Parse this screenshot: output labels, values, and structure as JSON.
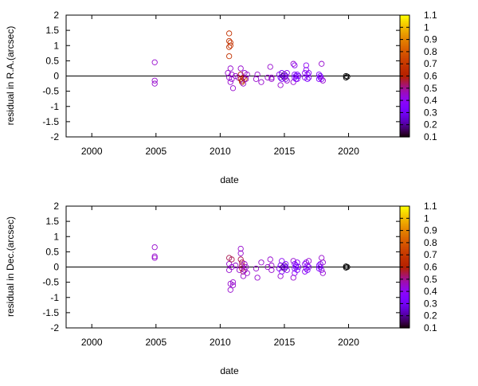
{
  "chart_data": [
    {
      "type": "scatter",
      "xlabel": "date",
      "ylabel": "residual in R.A.(arcsec)",
      "xlim": [
        1998,
        2024
      ],
      "ylim": [
        -2,
        2
      ],
      "xticks": [
        2000,
        2005,
        2010,
        2015,
        2020
      ],
      "yticks": [
        -2,
        -1.5,
        -1,
        -0.5,
        0,
        0.5,
        1,
        1.5,
        2
      ],
      "ytick_labels": [
        "-2",
        "-1.5",
        "-1",
        "-0.5",
        "0",
        "0.5",
        "1",
        "1.5",
        "2"
      ],
      "zero_line": true,
      "grid": false,
      "marker": "open-circle",
      "colorbar": {
        "range": [
          0.1,
          1.1
        ],
        "ticks": [
          0.1,
          0.2,
          0.3,
          0.4,
          0.5,
          0.6,
          0.7,
          0.8,
          0.9,
          1,
          1.1
        ],
        "tick_labels": [
          "0.1",
          "0.2",
          "0.3",
          "0.4",
          "0.5",
          "0.6",
          "0.7",
          "0.8",
          "0.9",
          "1",
          "1.1"
        ],
        "palette": "gnuplot-rgbformulae-7-5-15"
      },
      "points": [
        {
          "x": 2004.9,
          "y": 0.45,
          "c": 0.45
        },
        {
          "x": 2004.9,
          "y": -0.15,
          "c": 0.45
        },
        {
          "x": 2004.9,
          "y": -0.25,
          "c": 0.45
        },
        {
          "x": 2010.7,
          "y": 1.4,
          "c": 0.68
        },
        {
          "x": 2010.7,
          "y": 1.15,
          "c": 0.68
        },
        {
          "x": 2010.8,
          "y": 1.1,
          "c": 0.68
        },
        {
          "x": 2010.8,
          "y": 1.0,
          "c": 0.68
        },
        {
          "x": 2010.7,
          "y": 0.95,
          "c": 0.68
        },
        {
          "x": 2010.7,
          "y": 0.65,
          "c": 0.68
        },
        {
          "x": 2010.6,
          "y": 0.1,
          "c": 0.45
        },
        {
          "x": 2010.7,
          "y": -0.05,
          "c": 0.45
        },
        {
          "x": 2010.8,
          "y": 0.25,
          "c": 0.45
        },
        {
          "x": 2010.9,
          "y": 0.05,
          "c": 0.45
        },
        {
          "x": 2010.9,
          "y": -0.1,
          "c": 0.45
        },
        {
          "x": 2011.0,
          "y": -0.4,
          "c": 0.45
        },
        {
          "x": 2010.8,
          "y": -0.2,
          "c": 0.45
        },
        {
          "x": 2011.2,
          "y": 0.0,
          "c": 0.45
        },
        {
          "x": 2011.4,
          "y": -0.05,
          "c": 0.45
        },
        {
          "x": 2011.6,
          "y": 0.25,
          "c": 0.45
        },
        {
          "x": 2011.6,
          "y": 0.05,
          "c": 0.6
        },
        {
          "x": 2011.6,
          "y": -0.1,
          "c": 0.6
        },
        {
          "x": 2011.7,
          "y": -0.15,
          "c": 0.6
        },
        {
          "x": 2011.7,
          "y": -0.2,
          "c": 0.6
        },
        {
          "x": 2011.8,
          "y": -0.05,
          "c": 0.6
        },
        {
          "x": 2011.8,
          "y": -0.25,
          "c": 0.45
        },
        {
          "x": 2011.9,
          "y": 0.1,
          "c": 0.45
        },
        {
          "x": 2011.9,
          "y": -0.1,
          "c": 0.6
        },
        {
          "x": 2012.0,
          "y": -0.1,
          "c": 0.45
        },
        {
          "x": 2012.1,
          "y": 0.05,
          "c": 0.45
        },
        {
          "x": 2012.8,
          "y": -0.1,
          "c": 0.45
        },
        {
          "x": 2012.9,
          "y": 0.05,
          "c": 0.45
        },
        {
          "x": 2013.2,
          "y": -0.2,
          "c": 0.45
        },
        {
          "x": 2013.7,
          "y": -0.05,
          "c": 0.45
        },
        {
          "x": 2013.9,
          "y": 0.3,
          "c": 0.45
        },
        {
          "x": 2014.0,
          "y": -0.1,
          "c": 0.45
        },
        {
          "x": 2014.0,
          "y": -0.05,
          "c": 0.45
        },
        {
          "x": 2014.6,
          "y": 0.05,
          "c": 0.4
        },
        {
          "x": 2014.7,
          "y": -0.3,
          "c": 0.45
        },
        {
          "x": 2014.7,
          "y": -0.05,
          "c": 0.3
        },
        {
          "x": 2014.8,
          "y": 0.1,
          "c": 0.3
        },
        {
          "x": 2014.8,
          "y": -0.1,
          "c": 0.3
        },
        {
          "x": 2014.9,
          "y": 0.0,
          "c": 0.2
        },
        {
          "x": 2015.0,
          "y": 0.05,
          "c": 0.2
        },
        {
          "x": 2015.0,
          "y": -0.05,
          "c": 0.2
        },
        {
          "x": 2015.1,
          "y": 0.0,
          "c": 0.3
        },
        {
          "x": 2015.1,
          "y": -0.1,
          "c": 0.35
        },
        {
          "x": 2015.2,
          "y": 0.1,
          "c": 0.4
        },
        {
          "x": 2015.2,
          "y": -0.15,
          "c": 0.45
        },
        {
          "x": 2015.7,
          "y": 0.4,
          "c": 0.45
        },
        {
          "x": 2015.7,
          "y": -0.2,
          "c": 0.45
        },
        {
          "x": 2015.8,
          "y": 0.35,
          "c": 0.4
        },
        {
          "x": 2015.8,
          "y": 0.05,
          "c": 0.35
        },
        {
          "x": 2015.8,
          "y": -0.05,
          "c": 0.35
        },
        {
          "x": 2015.9,
          "y": 0.0,
          "c": 0.3
        },
        {
          "x": 2015.9,
          "y": -0.1,
          "c": 0.35
        },
        {
          "x": 2016.0,
          "y": 0.05,
          "c": 0.35
        },
        {
          "x": 2016.0,
          "y": -0.1,
          "c": 0.4
        },
        {
          "x": 2016.1,
          "y": 0.0,
          "c": 0.35
        },
        {
          "x": 2016.6,
          "y": 0.1,
          "c": 0.4
        },
        {
          "x": 2016.6,
          "y": -0.05,
          "c": 0.4
        },
        {
          "x": 2016.7,
          "y": 0.35,
          "c": 0.4
        },
        {
          "x": 2016.7,
          "y": 0.2,
          "c": 0.4
        },
        {
          "x": 2016.8,
          "y": 0.05,
          "c": 0.35
        },
        {
          "x": 2016.8,
          "y": -0.1,
          "c": 0.35
        },
        {
          "x": 2016.9,
          "y": -0.05,
          "c": 0.4
        },
        {
          "x": 2016.9,
          "y": 0.1,
          "c": 0.4
        },
        {
          "x": 2017.7,
          "y": 0.05,
          "c": 0.35
        },
        {
          "x": 2017.7,
          "y": -0.1,
          "c": 0.35
        },
        {
          "x": 2017.8,
          "y": 0.0,
          "c": 0.3
        },
        {
          "x": 2017.8,
          "y": -0.05,
          "c": 0.35
        },
        {
          "x": 2017.9,
          "y": 0.4,
          "c": 0.45
        },
        {
          "x": 2017.9,
          "y": -0.1,
          "c": 0.4
        },
        {
          "x": 2018.0,
          "y": -0.15,
          "c": 0.45
        },
        {
          "x": 2019.8,
          "y": 0.0,
          "c": 0.1
        },
        {
          "x": 2019.8,
          "y": -0.05,
          "c": 0.1
        },
        {
          "x": 2019.9,
          "y": -0.02,
          "c": 0.1
        }
      ]
    },
    {
      "type": "scatter",
      "xlabel": "date",
      "ylabel": "residual in Dec.(arcsec)",
      "xlim": [
        1998,
        2024
      ],
      "ylim": [
        -2,
        2
      ],
      "xticks": [
        2000,
        2005,
        2010,
        2015,
        2020
      ],
      "yticks": [
        -2,
        -1.5,
        -1,
        -0.5,
        0,
        0.5,
        1,
        1.5,
        2
      ],
      "ytick_labels": [
        "-2",
        "-1.5",
        "-1",
        "-0.5",
        "0",
        "0.5",
        "1",
        "1.5",
        "2"
      ],
      "zero_line": true,
      "grid": false,
      "marker": "open-circle",
      "colorbar": {
        "range": [
          0.1,
          1.1
        ],
        "ticks": [
          0.1,
          0.2,
          0.3,
          0.4,
          0.5,
          0.6,
          0.7,
          0.8,
          0.9,
          1,
          1.1
        ],
        "tick_labels": [
          "0.1",
          "0.2",
          "0.3",
          "0.4",
          "0.5",
          "0.6",
          "0.7",
          "0.8",
          "0.9",
          "1",
          "1.1"
        ],
        "palette": "gnuplot-rgbformulae-7-5-15"
      },
      "points": [
        {
          "x": 2004.9,
          "y": 0.65,
          "c": 0.45
        },
        {
          "x": 2004.9,
          "y": 0.35,
          "c": 0.45
        },
        {
          "x": 2004.9,
          "y": 0.3,
          "c": 0.45
        },
        {
          "x": 2010.7,
          "y": 0.3,
          "c": 0.55
        },
        {
          "x": 2010.7,
          "y": 0.1,
          "c": 0.45
        },
        {
          "x": 2010.7,
          "y": -0.1,
          "c": 0.45
        },
        {
          "x": 2010.8,
          "y": -0.55,
          "c": 0.45
        },
        {
          "x": 2010.8,
          "y": -0.75,
          "c": 0.45
        },
        {
          "x": 2010.9,
          "y": 0.25,
          "c": 0.55
        },
        {
          "x": 2010.9,
          "y": 0.0,
          "c": 0.45
        },
        {
          "x": 2011.0,
          "y": -0.6,
          "c": 0.45
        },
        {
          "x": 2011.0,
          "y": -0.5,
          "c": 0.45
        },
        {
          "x": 2011.2,
          "y": 0.05,
          "c": 0.45
        },
        {
          "x": 2011.5,
          "y": -0.1,
          "c": 0.45
        },
        {
          "x": 2011.6,
          "y": 0.6,
          "c": 0.45
        },
        {
          "x": 2011.6,
          "y": 0.45,
          "c": 0.45
        },
        {
          "x": 2011.6,
          "y": 0.25,
          "c": 0.55
        },
        {
          "x": 2011.7,
          "y": 0.15,
          "c": 0.55
        },
        {
          "x": 2011.7,
          "y": 0.05,
          "c": 0.55
        },
        {
          "x": 2011.7,
          "y": -0.05,
          "c": 0.55
        },
        {
          "x": 2011.8,
          "y": -0.15,
          "c": 0.55
        },
        {
          "x": 2011.8,
          "y": -0.3,
          "c": 0.45
        },
        {
          "x": 2011.9,
          "y": 0.1,
          "c": 0.45
        },
        {
          "x": 2011.9,
          "y": -0.1,
          "c": 0.45
        },
        {
          "x": 2012.0,
          "y": 0.0,
          "c": 0.45
        },
        {
          "x": 2012.1,
          "y": -0.2,
          "c": 0.45
        },
        {
          "x": 2012.8,
          "y": -0.05,
          "c": 0.45
        },
        {
          "x": 2012.9,
          "y": -0.35,
          "c": 0.45
        },
        {
          "x": 2013.2,
          "y": 0.15,
          "c": 0.45
        },
        {
          "x": 2013.7,
          "y": 0.0,
          "c": 0.45
        },
        {
          "x": 2013.9,
          "y": 0.25,
          "c": 0.45
        },
        {
          "x": 2014.0,
          "y": -0.1,
          "c": 0.45
        },
        {
          "x": 2014.0,
          "y": 0.05,
          "c": 0.45
        },
        {
          "x": 2014.6,
          "y": -0.05,
          "c": 0.4
        },
        {
          "x": 2014.7,
          "y": -0.3,
          "c": 0.45
        },
        {
          "x": 2014.7,
          "y": 0.05,
          "c": 0.3
        },
        {
          "x": 2014.8,
          "y": 0.2,
          "c": 0.4
        },
        {
          "x": 2014.8,
          "y": -0.15,
          "c": 0.35
        },
        {
          "x": 2014.9,
          "y": 0.0,
          "c": 0.2
        },
        {
          "x": 2015.0,
          "y": 0.05,
          "c": 0.2
        },
        {
          "x": 2015.0,
          "y": -0.05,
          "c": 0.2
        },
        {
          "x": 2015.1,
          "y": 0.0,
          "c": 0.3
        },
        {
          "x": 2015.1,
          "y": 0.1,
          "c": 0.35
        },
        {
          "x": 2015.2,
          "y": -0.1,
          "c": 0.4
        },
        {
          "x": 2015.7,
          "y": 0.2,
          "c": 0.45
        },
        {
          "x": 2015.7,
          "y": -0.35,
          "c": 0.45
        },
        {
          "x": 2015.8,
          "y": -0.2,
          "c": 0.4
        },
        {
          "x": 2015.8,
          "y": 0.1,
          "c": 0.35
        },
        {
          "x": 2015.8,
          "y": -0.05,
          "c": 0.35
        },
        {
          "x": 2015.9,
          "y": 0.0,
          "c": 0.3
        },
        {
          "x": 2015.9,
          "y": 0.05,
          "c": 0.35
        },
        {
          "x": 2016.0,
          "y": -0.1,
          "c": 0.35
        },
        {
          "x": 2016.0,
          "y": 0.15,
          "c": 0.4
        },
        {
          "x": 2016.1,
          "y": 0.0,
          "c": 0.35
        },
        {
          "x": 2016.6,
          "y": 0.1,
          "c": 0.4
        },
        {
          "x": 2016.6,
          "y": -0.15,
          "c": 0.4
        },
        {
          "x": 2016.7,
          "y": 0.15,
          "c": 0.4
        },
        {
          "x": 2016.7,
          "y": -0.05,
          "c": 0.4
        },
        {
          "x": 2016.8,
          "y": 0.05,
          "c": 0.35
        },
        {
          "x": 2016.8,
          "y": -0.1,
          "c": 0.35
        },
        {
          "x": 2016.9,
          "y": 0.2,
          "c": 0.45
        },
        {
          "x": 2016.9,
          "y": 0.0,
          "c": 0.4
        },
        {
          "x": 2017.7,
          "y": 0.05,
          "c": 0.35
        },
        {
          "x": 2017.7,
          "y": -0.05,
          "c": 0.35
        },
        {
          "x": 2017.8,
          "y": 0.0,
          "c": 0.3
        },
        {
          "x": 2017.8,
          "y": 0.1,
          "c": 0.35
        },
        {
          "x": 2017.9,
          "y": 0.3,
          "c": 0.45
        },
        {
          "x": 2017.9,
          "y": -0.1,
          "c": 0.4
        },
        {
          "x": 2018.0,
          "y": -0.2,
          "c": 0.45
        },
        {
          "x": 2018.0,
          "y": 0.15,
          "c": 0.45
        },
        {
          "x": 2019.8,
          "y": 0.02,
          "c": 0.1
        },
        {
          "x": 2019.8,
          "y": -0.02,
          "c": 0.1
        },
        {
          "x": 2019.9,
          "y": 0.0,
          "c": 0.1
        }
      ]
    }
  ]
}
